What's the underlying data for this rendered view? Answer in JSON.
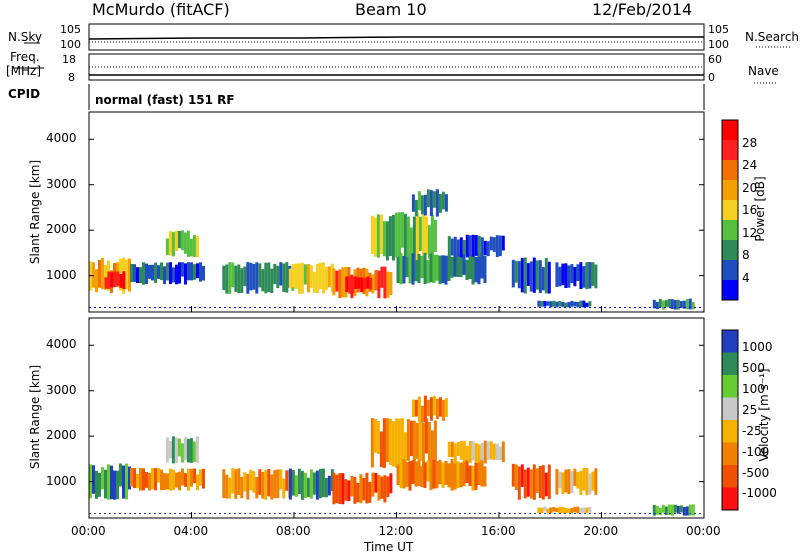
{
  "header": {
    "station": "McMurdo (fitACF)",
    "beam": "Beam 10",
    "date": "12/Feb/2014"
  },
  "top_panels": {
    "nsky_label": "N.Sky",
    "nsearch_label": "N.Search",
    "noise_tick_top": "10^5",
    "noise_tick_bottom": "10^0",
    "freq_label_1": "Freq.",
    "freq_label_2": "[MHz]",
    "freq_tick_top": "18",
    "freq_tick_bottom": "8",
    "nave_label": "Nave",
    "nave_tick_top": "60",
    "nave_tick_bottom": "0",
    "cpid_label": "CPID",
    "cpid_value": "normal (fast) 151 RF"
  },
  "colors": {
    "power": [
      "#0000ff",
      "#1f4fbf",
      "#2e8b57",
      "#55c040",
      "#f4d020",
      "#f5a000",
      "#f07000",
      "#ff2020",
      "#ff0000"
    ],
    "velocity": [
      "#2040c0",
      "#2e8b57",
      "#66cc33",
      "#c8c8c8",
      "#f5b000",
      "#f08000",
      "#f05000",
      "#ff1010"
    ]
  },
  "chart_data": [
    {
      "type": "heatmap",
      "name": "power",
      "ylabel": "Slant Range [km]",
      "xlabel": "",
      "ylim": [
        200,
        4600
      ],
      "yticks": [
        "1000",
        "2000",
        "3000",
        "4000"
      ],
      "colorbar_label": "Power [dB]",
      "colorbar_ticks": [
        "4",
        "8",
        "12",
        "16",
        "20",
        "24",
        "28"
      ],
      "regions": [
        {
          "t0": 0.0,
          "t1": 1.6,
          "r0": 600,
          "r1": 1400,
          "level": 5
        },
        {
          "t0": 0.6,
          "t1": 1.4,
          "r0": 700,
          "r1": 1100,
          "level": 8
        },
        {
          "t0": 1.6,
          "t1": 4.5,
          "r0": 800,
          "r1": 1300,
          "level": 1
        },
        {
          "t0": 3.0,
          "t1": 4.2,
          "r0": 1400,
          "r1": 2000,
          "level": 3
        },
        {
          "t0": 5.2,
          "t1": 8.0,
          "r0": 600,
          "r1": 1300,
          "level": 2
        },
        {
          "t0": 7.8,
          "t1": 9.5,
          "r0": 600,
          "r1": 1300,
          "level": 4
        },
        {
          "t0": 9.5,
          "t1": 11.8,
          "r0": 500,
          "r1": 1200,
          "level": 6
        },
        {
          "t0": 10.0,
          "t1": 11.0,
          "r0": 600,
          "r1": 1000,
          "level": 8
        },
        {
          "t0": 11.0,
          "t1": 13.5,
          "r0": 1300,
          "r1": 2400,
          "level": 3
        },
        {
          "t0": 12.6,
          "t1": 14.0,
          "r0": 2300,
          "r1": 2900,
          "level": 2
        },
        {
          "t0": 12.0,
          "t1": 15.5,
          "r0": 800,
          "r1": 1500,
          "level": 2
        },
        {
          "t0": 14.0,
          "t1": 16.2,
          "r0": 1400,
          "r1": 1900,
          "level": 1
        },
        {
          "t0": 16.5,
          "t1": 18.0,
          "r0": 600,
          "r1": 1400,
          "level": 1
        },
        {
          "t0": 17.5,
          "t1": 19.5,
          "r0": 300,
          "r1": 450,
          "level": 1
        },
        {
          "t0": 18.2,
          "t1": 19.8,
          "r0": 700,
          "r1": 1300,
          "level": 1
        },
        {
          "t0": 22.0,
          "t1": 23.6,
          "r0": 250,
          "r1": 500,
          "level": 2
        }
      ]
    },
    {
      "type": "heatmap",
      "name": "velocity",
      "ylabel": "Slant Range [km]",
      "xlabel": "Time UT",
      "ylim": [
        200,
        4600
      ],
      "yticks": [
        "1000",
        "2000",
        "3000",
        "4000"
      ],
      "xticks": [
        "00:00",
        "04:00",
        "08:00",
        "12:00",
        "16:00",
        "20:00",
        "00:00"
      ],
      "xlim": [
        0,
        24
      ],
      "colorbar_label": "Velocity [m s⁻¹]",
      "colorbar_ticks": [
        "1000",
        "500",
        "100",
        "25",
        "-25",
        "-100",
        "-500",
        "-1000"
      ],
      "regions": [
        {
          "t0": 0.0,
          "t1": 1.6,
          "r0": 600,
          "r1": 1400,
          "level": 1
        },
        {
          "t0": 1.6,
          "t1": 4.5,
          "r0": 800,
          "r1": 1300,
          "level": 5
        },
        {
          "t0": 3.0,
          "t1": 4.2,
          "r0": 1400,
          "r1": 2000,
          "level": 2
        },
        {
          "t0": 5.2,
          "t1": 8.0,
          "r0": 600,
          "r1": 1300,
          "level": 5
        },
        {
          "t0": 7.8,
          "t1": 9.5,
          "r0": 600,
          "r1": 1300,
          "level": 1
        },
        {
          "t0": 9.5,
          "t1": 11.8,
          "r0": 500,
          "r1": 1200,
          "level": 6
        },
        {
          "t0": 11.0,
          "t1": 13.5,
          "r0": 1300,
          "r1": 2400,
          "level": 5
        },
        {
          "t0": 12.6,
          "t1": 14.0,
          "r0": 2300,
          "r1": 2900,
          "level": 5
        },
        {
          "t0": 12.0,
          "t1": 15.5,
          "r0": 800,
          "r1": 1500,
          "level": 5
        },
        {
          "t0": 14.0,
          "t1": 16.2,
          "r0": 1400,
          "r1": 1900,
          "level": 4
        },
        {
          "t0": 16.5,
          "t1": 18.0,
          "r0": 600,
          "r1": 1400,
          "level": 6
        },
        {
          "t0": 17.5,
          "t1": 19.5,
          "r0": 300,
          "r1": 450,
          "level": 4
        },
        {
          "t0": 18.2,
          "t1": 19.8,
          "r0": 700,
          "r1": 1300,
          "level": 4
        },
        {
          "t0": 22.0,
          "t1": 23.6,
          "r0": 250,
          "r1": 500,
          "level": 1
        }
      ]
    }
  ]
}
